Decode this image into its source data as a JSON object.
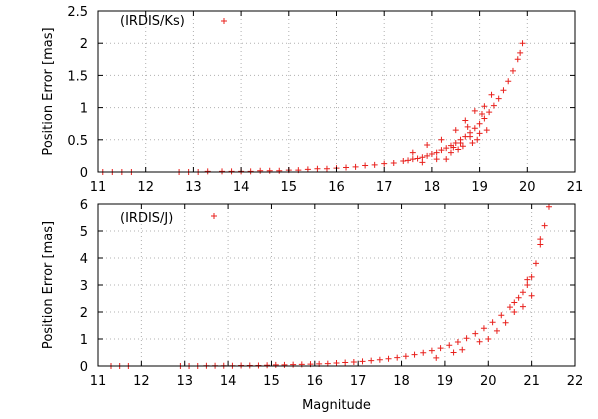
{
  "chart_data": [
    {
      "type": "scatter",
      "marker": "+",
      "color": "#e8201c",
      "xlabel": "",
      "ylabel": "Position Error [mas]",
      "xlim": [
        11,
        21
      ],
      "ylim": [
        0,
        2.5
      ],
      "xticks": [
        11,
        12,
        13,
        14,
        15,
        16,
        17,
        18,
        19,
        20,
        21
      ],
      "yticks": [
        0,
        0.5,
        1,
        1.5,
        2,
        2.5
      ],
      "xtick_labels": [
        "11",
        "12",
        "13",
        "14",
        "15",
        "16",
        "17",
        "18",
        "19",
        "20",
        "21"
      ],
      "ytick_labels": [
        "0",
        "0.5",
        "1",
        "1.5",
        "2",
        "2.5"
      ],
      "grid": true,
      "legend_placement": "top-left",
      "series": [
        {
          "name": "(IRDIS/Ks)",
          "x": [
            11.1,
            11.3,
            11.5,
            11.7,
            12.7,
            12.9,
            13.1,
            13.3,
            13.6,
            13.8,
            14.0,
            14.2,
            14.4,
            14.6,
            14.8,
            15.0,
            15.2,
            15.4,
            15.6,
            15.8,
            16.0,
            16.2,
            16.4,
            16.6,
            16.8,
            17.0,
            17.2,
            17.4,
            17.5,
            17.6,
            17.7,
            17.8,
            17.9,
            18.0,
            18.1,
            18.2,
            18.3,
            18.4,
            18.5,
            18.6,
            18.7,
            18.8,
            18.9,
            19.0,
            19.1,
            19.2,
            19.3,
            19.4,
            19.5,
            19.6,
            19.7,
            19.8,
            19.85,
            19.9,
            17.6,
            17.9,
            18.2,
            18.5,
            18.7,
            18.9,
            19.1,
            18.3,
            18.6,
            18.8,
            19.0,
            18.45,
            18.75,
            19.05,
            19.25,
            17.8,
            18.1,
            18.4,
            18.65,
            18.95,
            19.15,
            18.55,
            18.85
          ],
          "y": [
            0.0,
            0.0,
            0.0,
            0.0,
            0.0,
            0.0,
            0.0,
            0.01,
            0.01,
            0.01,
            0.01,
            0.01,
            0.02,
            0.02,
            0.02,
            0.03,
            0.03,
            0.04,
            0.05,
            0.05,
            0.06,
            0.07,
            0.08,
            0.1,
            0.11,
            0.13,
            0.14,
            0.17,
            0.18,
            0.2,
            0.21,
            0.23,
            0.25,
            0.28,
            0.3,
            0.34,
            0.37,
            0.41,
            0.45,
            0.5,
            0.55,
            0.61,
            0.68,
            0.75,
            0.83,
            0.93,
            1.03,
            1.14,
            1.27,
            1.41,
            1.57,
            1.75,
            1.85,
            2.0,
            0.3,
            0.42,
            0.5,
            0.65,
            0.8,
            0.95,
            1.02,
            0.2,
            0.45,
            0.55,
            0.6,
            0.38,
            0.7,
            0.9,
            1.2,
            0.15,
            0.2,
            0.3,
            0.4,
            0.5,
            0.65,
            0.35,
            0.45
          ]
        }
      ]
    },
    {
      "type": "scatter",
      "marker": "+",
      "color": "#e8201c",
      "xlabel": "Magnitude",
      "ylabel": "Position Error [mas]",
      "xlim": [
        11,
        22
      ],
      "ylim": [
        0,
        6
      ],
      "xticks": [
        11,
        12,
        13,
        14,
        15,
        16,
        17,
        18,
        19,
        20,
        21,
        22
      ],
      "yticks": [
        0,
        1,
        2,
        3,
        4,
        5,
        6
      ],
      "xtick_labels": [
        "11",
        "12",
        "13",
        "14",
        "15",
        "16",
        "17",
        "18",
        "19",
        "20",
        "21",
        "22"
      ],
      "ytick_labels": [
        "0",
        "1",
        "2",
        "3",
        "4",
        "5",
        "6"
      ],
      "grid": true,
      "legend_placement": "top-left",
      "series": [
        {
          "name": "(IRDIS/J)",
          "x": [
            11.3,
            11.5,
            11.7,
            12.9,
            13.1,
            13.3,
            13.5,
            13.7,
            13.9,
            14.1,
            14.3,
            14.5,
            14.7,
            14.9,
            15.1,
            15.3,
            15.5,
            15.7,
            15.9,
            16.1,
            16.3,
            16.5,
            16.7,
            16.9,
            17.1,
            17.3,
            17.5,
            17.7,
            17.9,
            18.1,
            18.3,
            18.5,
            18.7,
            18.9,
            19.1,
            19.3,
            19.5,
            19.7,
            19.9,
            20.1,
            20.3,
            20.5,
            20.6,
            20.7,
            20.8,
            20.9,
            21.0,
            21.1,
            21.2,
            21.3,
            21.4,
            19.2,
            19.8,
            20.2,
            20.6,
            21.0,
            18.8,
            19.4,
            20.0,
            20.4,
            20.8,
            21.2,
            20.9
          ],
          "y": [
            0.0,
            0.0,
            0.0,
            0.0,
            0.0,
            0.0,
            0.01,
            0.01,
            0.01,
            0.01,
            0.02,
            0.02,
            0.02,
            0.03,
            0.04,
            0.04,
            0.05,
            0.06,
            0.07,
            0.08,
            0.09,
            0.11,
            0.13,
            0.15,
            0.17,
            0.2,
            0.23,
            0.27,
            0.31,
            0.36,
            0.42,
            0.49,
            0.57,
            0.66,
            0.77,
            0.89,
            1.03,
            1.2,
            1.4,
            1.62,
            1.88,
            2.18,
            2.35,
            2.53,
            2.73,
            3.0,
            3.3,
            3.8,
            4.5,
            5.2,
            5.9,
            0.5,
            0.9,
            1.3,
            2.0,
            2.6,
            0.3,
            0.6,
            1.0,
            1.6,
            2.2,
            4.7,
            3.2
          ]
        }
      ]
    },
    {
      "outlier_note": ""
    }
  ]
}
